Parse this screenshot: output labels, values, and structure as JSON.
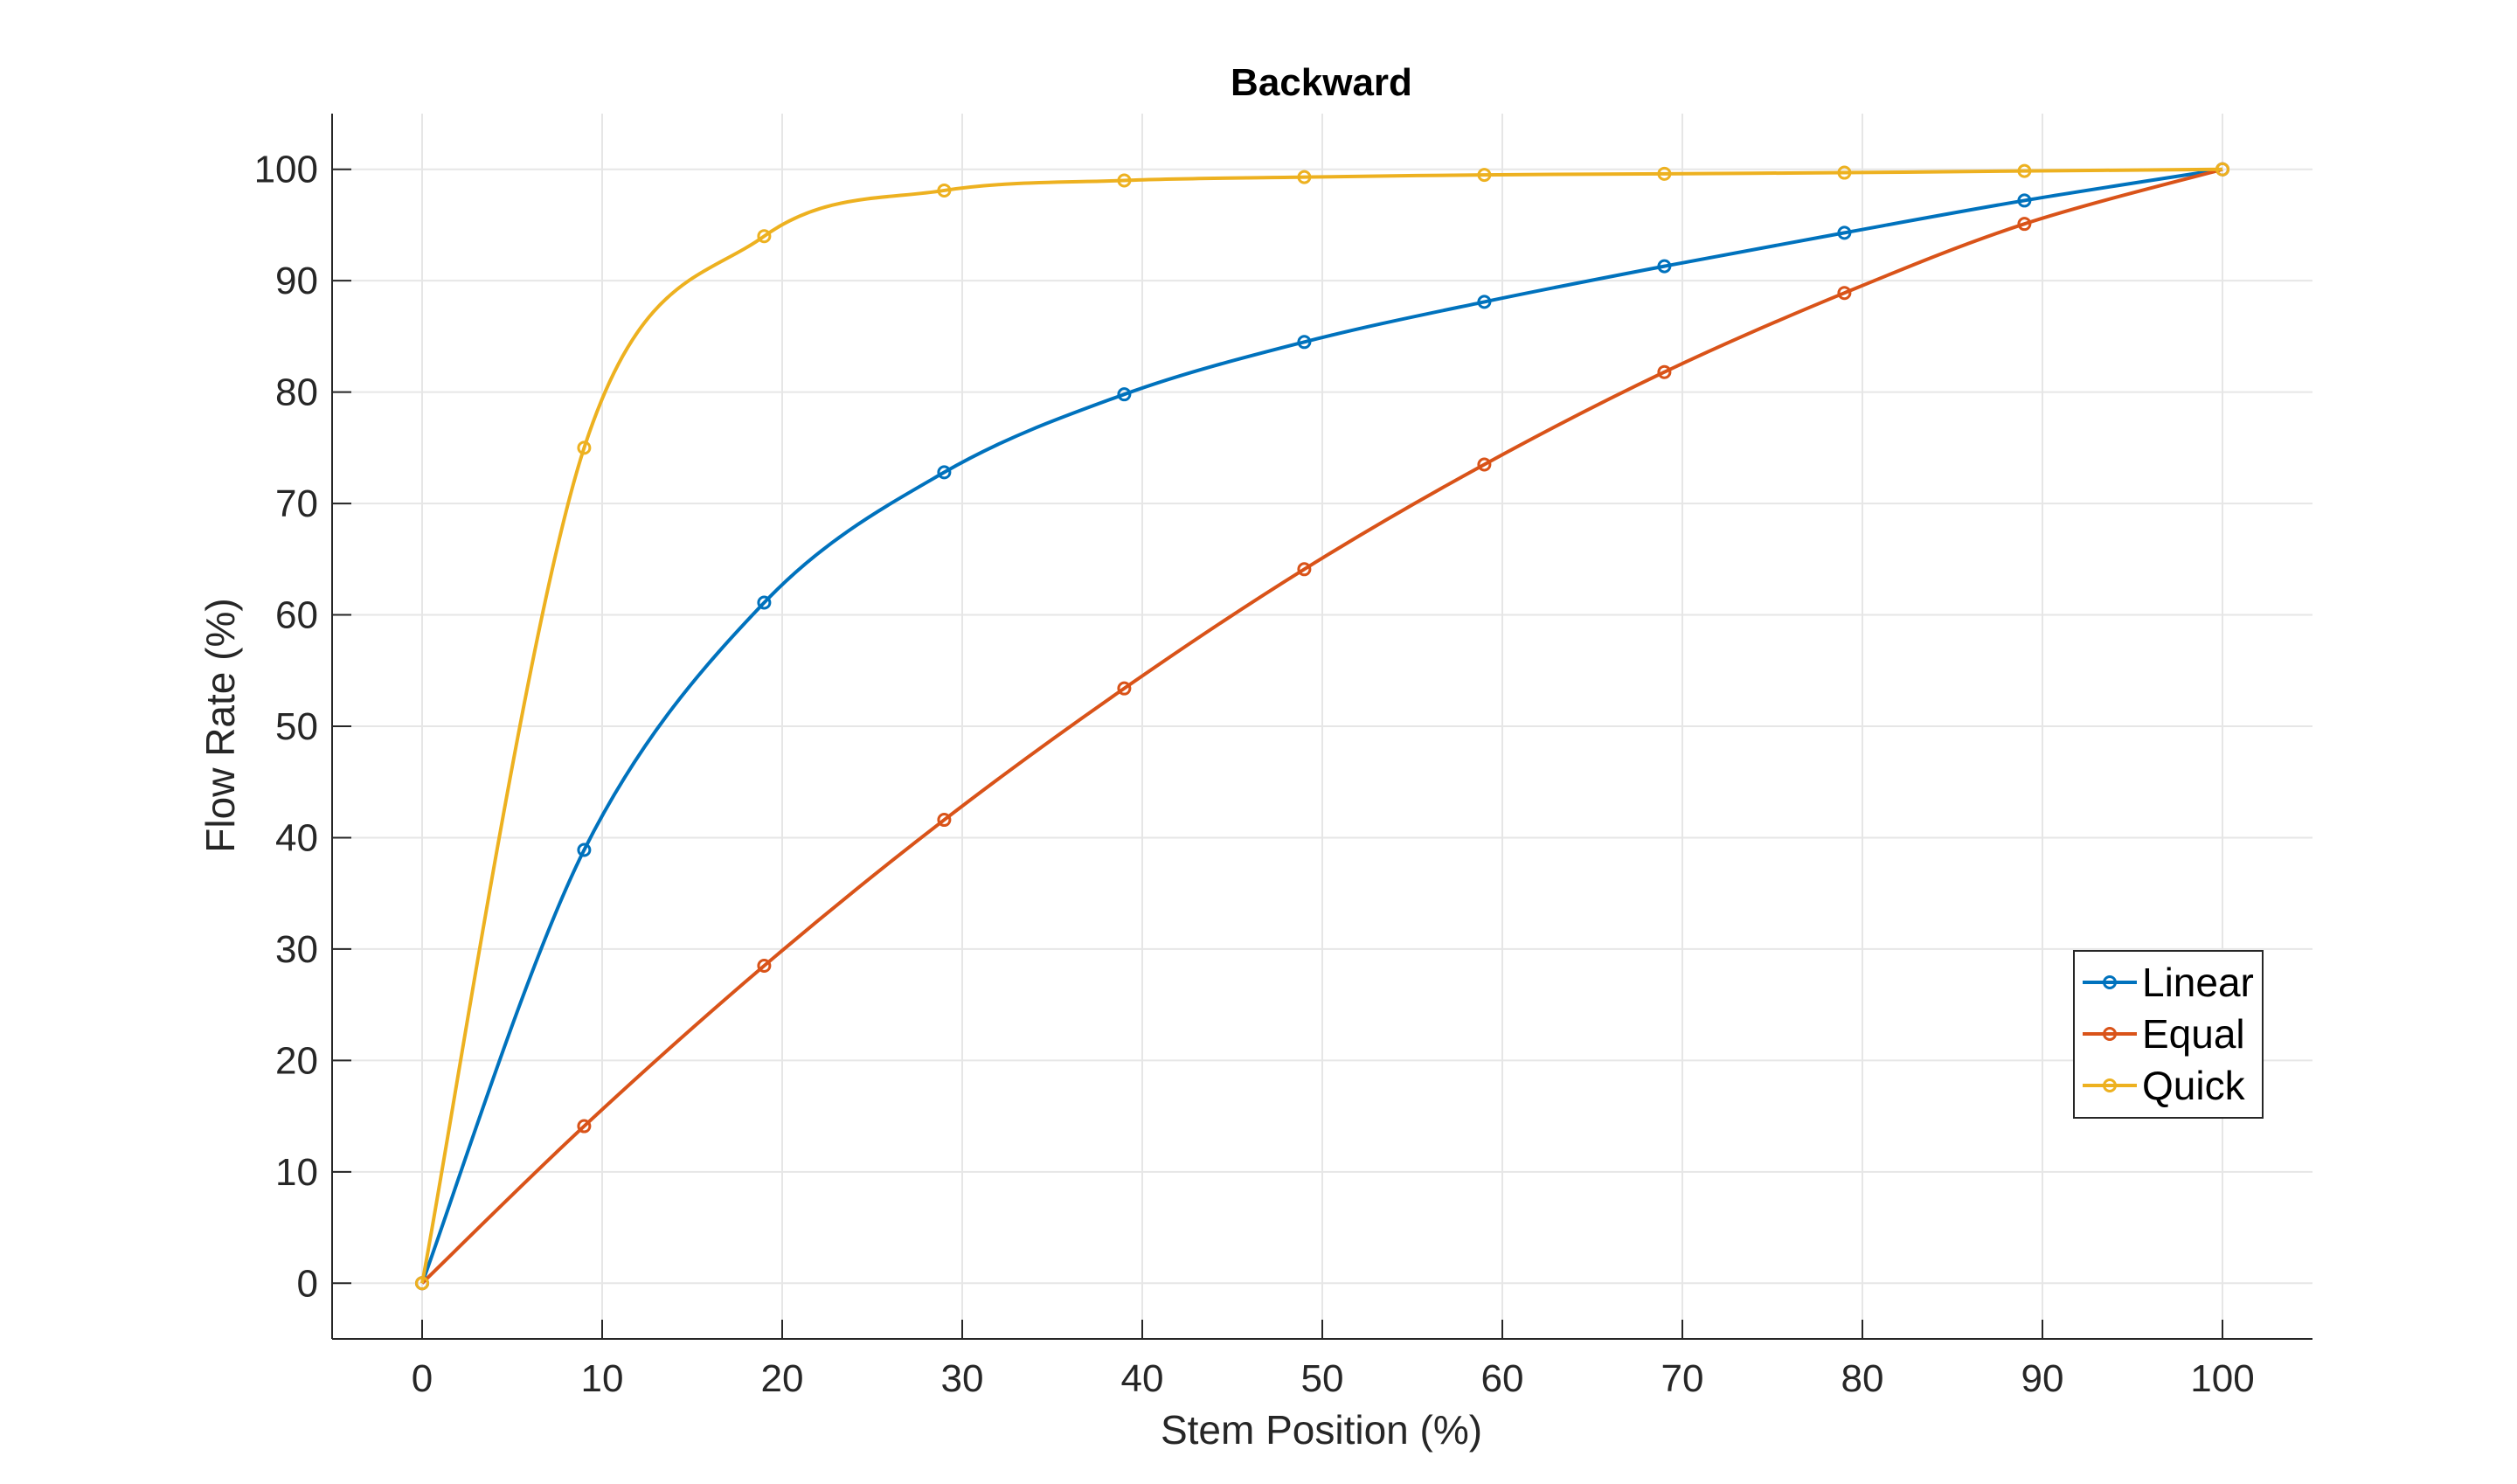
{
  "chart_data": {
    "type": "line",
    "title": "Backward",
    "xlabel": "Stem Position (%)",
    "ylabel": "Flow Rate (%)",
    "xlim": [
      -5,
      105
    ],
    "ylim": [
      -5,
      105
    ],
    "xticks": [
      0,
      10,
      20,
      30,
      40,
      50,
      60,
      70,
      80,
      90,
      100
    ],
    "yticks": [
      0,
      10,
      20,
      30,
      40,
      50,
      60,
      70,
      80,
      90,
      100
    ],
    "grid": true,
    "legend_position": "bottom-right",
    "series": [
      {
        "name": "Linear",
        "color": "#0072BD",
        "marker": "circle",
        "x": [
          0,
          9,
          19,
          29,
          39,
          49,
          59,
          69,
          79,
          89,
          100
        ],
        "y": [
          0,
          38.9,
          61.1,
          72.8,
          79.8,
          84.5,
          88.1,
          91.3,
          94.3,
          97.2,
          100
        ]
      },
      {
        "name": "Equal",
        "color": "#D95319",
        "marker": "circle",
        "x": [
          0,
          9,
          19,
          29,
          39,
          49,
          59,
          69,
          79,
          89,
          100
        ],
        "y": [
          0,
          14.1,
          28.5,
          41.6,
          53.4,
          64.1,
          73.5,
          81.8,
          88.9,
          95.1,
          100
        ]
      },
      {
        "name": "Quick",
        "color": "#EDB120",
        "marker": "circle",
        "x": [
          0,
          9,
          19,
          29,
          39,
          49,
          59,
          69,
          79,
          89,
          100
        ],
        "y": [
          0,
          75,
          94,
          98.1,
          99,
          99.3,
          99.5,
          99.6,
          99.7,
          99.85,
          100
        ]
      }
    ]
  }
}
